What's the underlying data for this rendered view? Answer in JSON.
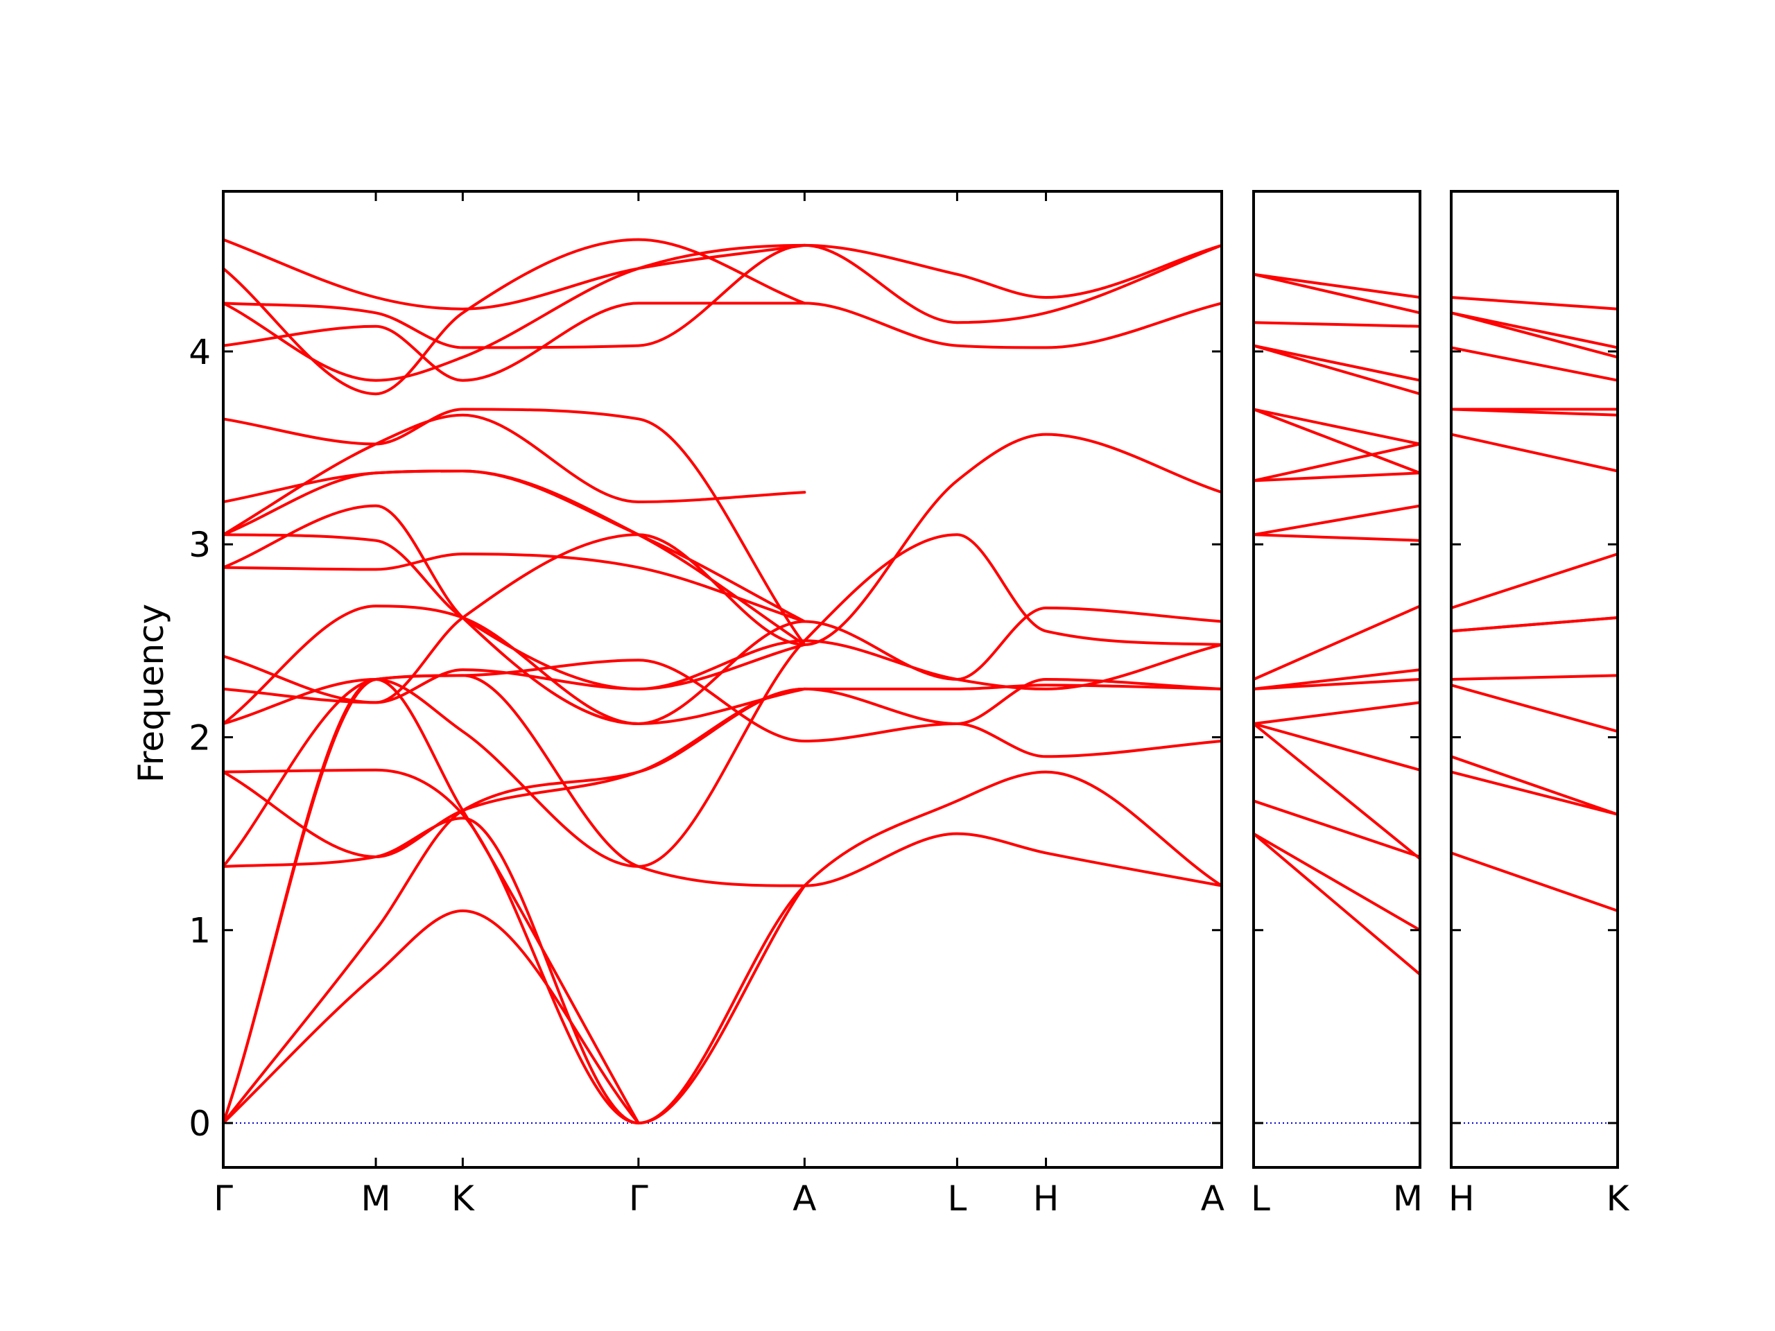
{
  "chart_data": {
    "type": "line",
    "title": "",
    "ylabel": "Frequency",
    "ylim": [
      -0.23,
      4.83
    ],
    "yticks": [
      0,
      1,
      2,
      3,
      4
    ],
    "line_color": "#ff0000",
    "zero_line_color": "#0000cc",
    "grid": false,
    "legend": "none",
    "panels": [
      {
        "xlim": [
          0,
          5.17
        ],
        "point_labels": [
          {
            "x": 0.0,
            "label": "Γ"
          },
          {
            "x": 0.79,
            "label": "M"
          },
          {
            "x": 1.24,
            "label": "K"
          },
          {
            "x": 2.15,
            "label": "Γ"
          },
          {
            "x": 3.01,
            "label": "A"
          },
          {
            "x": 3.8,
            "label": "L"
          },
          {
            "x": 4.26,
            "label": "H"
          },
          {
            "x": 5.17,
            "label": "A"
          }
        ],
        "bands": [
          [
            [
              0,
              0
            ],
            [
              0.79,
              0.77
            ],
            [
              1.24,
              1.1
            ],
            [
              2.15,
              0
            ]
          ],
          [
            [
              0,
              0
            ],
            [
              0.79,
              1.0
            ],
            [
              1.24,
              1.62
            ],
            [
              2.15,
              1.82
            ],
            [
              3.01,
              2.25
            ],
            [
              3.8,
              2.25
            ],
            [
              4.26,
              2.27
            ],
            [
              5.17,
              2.25
            ]
          ],
          [
            [
              0,
              0
            ],
            [
              0.79,
              2.3
            ],
            [
              1.24,
              1.62
            ],
            [
              2.15,
              0
            ]
          ],
          [
            [
              0,
              0
            ],
            [
              0.79,
              2.3
            ],
            [
              1.24,
              2.32
            ],
            [
              2.15,
              1.33
            ],
            [
              3.01,
              1.23
            ],
            [
              3.8,
              1.5
            ],
            [
              4.26,
              1.4
            ],
            [
              5.17,
              1.23
            ]
          ],
          [
            [
              0,
              1.33
            ],
            [
              0.79,
              1.38
            ],
            [
              1.24,
              1.58
            ],
            [
              2.15,
              0
            ],
            [
              3.01,
              1.23
            ],
            [
              3.8,
              1.67
            ],
            [
              4.26,
              1.82
            ],
            [
              5.17,
              1.23
            ]
          ],
          [
            [
              0,
              1.33
            ],
            [
              0.79,
              2.3
            ],
            [
              1.24,
              2.32
            ],
            [
              2.15,
              2.4
            ],
            [
              3.01,
              1.98
            ],
            [
              3.8,
              2.07
            ],
            [
              4.26,
              1.9
            ],
            [
              5.17,
              1.98
            ]
          ],
          [
            [
              0,
              1.82
            ],
            [
              0.79,
              1.83
            ],
            [
              1.24,
              1.6
            ],
            [
              2.15,
              0
            ],
            [
              3.01,
              1.23
            ]
          ],
          [
            [
              0,
              1.82
            ],
            [
              0.79,
              1.38
            ],
            [
              1.24,
              1.62
            ],
            [
              2.15,
              1.82
            ],
            [
              3.01,
              2.25
            ],
            [
              3.8,
              2.07
            ],
            [
              4.26,
              2.3
            ],
            [
              5.17,
              2.25
            ]
          ],
          [
            [
              0,
              2.07
            ],
            [
              0.79,
              2.3
            ],
            [
              1.24,
              2.03
            ],
            [
              2.15,
              1.33
            ],
            [
              3.01,
              2.5
            ],
            [
              3.8,
              3.05
            ],
            [
              4.26,
              2.55
            ],
            [
              5.17,
              2.48
            ]
          ],
          [
            [
              0,
              2.07
            ],
            [
              0.79,
              2.68
            ],
            [
              1.24,
              2.62
            ],
            [
              2.15,
              2.07
            ],
            [
              3.01,
              2.6
            ],
            [
              3.8,
              2.3
            ],
            [
              4.26,
              2.67
            ],
            [
              5.17,
              2.6
            ]
          ],
          [
            [
              0,
              2.25
            ],
            [
              0.79,
              2.18
            ],
            [
              1.24,
              2.62
            ],
            [
              2.15,
              3.05
            ],
            [
              3.01,
              2.48
            ],
            [
              3.8,
              3.33
            ],
            [
              4.26,
              3.57
            ],
            [
              5.17,
              3.27
            ]
          ],
          [
            [
              0,
              2.42
            ],
            [
              0.79,
              2.18
            ],
            [
              1.24,
              2.35
            ],
            [
              2.15,
              2.25
            ],
            [
              3.01,
              2.5
            ],
            [
              3.8,
              2.3
            ],
            [
              4.26,
              2.25
            ],
            [
              5.17,
              2.48
            ]
          ],
          [
            [
              0,
              2.88
            ],
            [
              0.79,
              2.87
            ],
            [
              1.24,
              2.95
            ],
            [
              2.15,
              2.88
            ],
            [
              3.01,
              2.6
            ]
          ],
          [
            [
              0,
              2.88
            ],
            [
              0.79,
              3.2
            ],
            [
              1.24,
              2.62
            ],
            [
              2.15,
              2.07
            ],
            [
              3.01,
              2.25
            ]
          ],
          [
            [
              0,
              3.05
            ],
            [
              0.79,
              3.02
            ],
            [
              1.24,
              2.62
            ],
            [
              2.15,
              2.25
            ],
            [
              3.01,
              2.48
            ]
          ],
          [
            [
              0,
              3.05
            ],
            [
              0.79,
              3.37
            ],
            [
              1.24,
              3.38
            ],
            [
              2.15,
              3.05
            ],
            [
              3.01,
              2.48
            ]
          ],
          [
            [
              0,
              3.05
            ],
            [
              0.79,
              3.52
            ],
            [
              1.24,
              3.67
            ],
            [
              2.15,
              3.22
            ],
            [
              3.01,
              3.27
            ]
          ],
          [
            [
              0,
              3.22
            ],
            [
              0.79,
              3.37
            ],
            [
              1.24,
              3.38
            ],
            [
              2.15,
              3.05
            ],
            [
              3.01,
              2.6
            ]
          ],
          [
            [
              0,
              3.65
            ],
            [
              0.79,
              3.52
            ],
            [
              1.24,
              3.7
            ],
            [
              2.15,
              3.65
            ],
            [
              3.01,
              2.48
            ]
          ],
          [
            [
              0,
              4.03
            ],
            [
              0.79,
              4.13
            ],
            [
              1.24,
              3.85
            ],
            [
              2.15,
              4.25
            ],
            [
              3.01,
              4.25
            ],
            [
              3.8,
              4.03
            ],
            [
              4.26,
              4.02
            ],
            [
              5.17,
              4.25
            ]
          ],
          [
            [
              0,
              4.25
            ],
            [
              0.79,
              3.85
            ],
            [
              1.24,
              3.97
            ],
            [
              2.15,
              4.43
            ],
            [
              3.01,
              4.55
            ],
            [
              3.8,
              4.15
            ],
            [
              4.26,
              4.2
            ],
            [
              5.17,
              4.55
            ]
          ],
          [
            [
              0,
              4.25
            ],
            [
              0.79,
              4.2
            ],
            [
              1.24,
              4.02
            ],
            [
              2.15,
              4.03
            ],
            [
              3.01,
              4.55
            ],
            [
              3.8,
              4.4
            ],
            [
              4.26,
              4.28
            ],
            [
              5.17,
              4.55
            ]
          ],
          [
            [
              0,
              4.43
            ],
            [
              0.79,
              3.78
            ],
            [
              1.24,
              4.2
            ],
            [
              2.15,
              4.58
            ],
            [
              3.01,
              4.25
            ]
          ],
          [
            [
              0,
              4.58
            ],
            [
              0.79,
              4.28
            ],
            [
              1.24,
              4.22
            ],
            [
              2.15,
              4.43
            ],
            [
              3.01,
              4.55
            ]
          ]
        ]
      },
      {
        "xlim": [
          0,
          0.79
        ],
        "point_labels": [
          {
            "x": 0.0,
            "label": "L"
          },
          {
            "x": 0.79,
            "label": "M"
          }
        ],
        "bands": [
          [
            [
              0,
              1.5
            ],
            [
              0.79,
              0.77
            ]
          ],
          [
            [
              0,
              1.5
            ],
            [
              0.79,
              1.0
            ]
          ],
          [
            [
              0,
              1.67
            ],
            [
              0.79,
              1.38
            ]
          ],
          [
            [
              0,
              2.07
            ],
            [
              0.79,
              1.37
            ]
          ],
          [
            [
              0,
              2.07
            ],
            [
              0.79,
              1.83
            ]
          ],
          [
            [
              0,
              2.07
            ],
            [
              0.79,
              2.18
            ]
          ],
          [
            [
              0,
              2.25
            ],
            [
              0.79,
              2.3
            ]
          ],
          [
            [
              0,
              2.25
            ],
            [
              0.79,
              2.35
            ]
          ],
          [
            [
              0,
              2.3
            ],
            [
              0.79,
              2.68
            ]
          ],
          [
            [
              0,
              3.05
            ],
            [
              0.79,
              3.02
            ]
          ],
          [
            [
              0,
              3.05
            ],
            [
              0.79,
              3.2
            ]
          ],
          [
            [
              0,
              3.33
            ],
            [
              0.79,
              3.37
            ]
          ],
          [
            [
              0,
              3.33
            ],
            [
              0.79,
              3.52
            ]
          ],
          [
            [
              0,
              3.7
            ],
            [
              0.79,
              3.37
            ]
          ],
          [
            [
              0,
              3.7
            ],
            [
              0.79,
              3.52
            ]
          ],
          [
            [
              0,
              4.03
            ],
            [
              0.79,
              3.78
            ]
          ],
          [
            [
              0,
              4.03
            ],
            [
              0.79,
              3.85
            ]
          ],
          [
            [
              0,
              4.15
            ],
            [
              0.79,
              4.13
            ]
          ],
          [
            [
              0,
              4.4
            ],
            [
              0.79,
              4.2
            ]
          ],
          [
            [
              0,
              4.4
            ],
            [
              0.79,
              4.28
            ]
          ]
        ]
      },
      {
        "xlim": [
          0,
          0.79
        ],
        "point_labels": [
          {
            "x": 0.0,
            "label": "H"
          },
          {
            "x": 0.79,
            "label": "K"
          }
        ],
        "bands": [
          [
            [
              0,
              1.4
            ],
            [
              0.79,
              1.1
            ]
          ],
          [
            [
              0,
              1.82
            ],
            [
              0.79,
              1.6
            ]
          ],
          [
            [
              0,
              1.9
            ],
            [
              0.79,
              1.6
            ]
          ],
          [
            [
              0,
              2.27
            ],
            [
              0.79,
              2.03
            ]
          ],
          [
            [
              0,
              2.3
            ],
            [
              0.79,
              2.32
            ]
          ],
          [
            [
              0,
              2.55
            ],
            [
              0.79,
              2.62
            ]
          ],
          [
            [
              0,
              2.55
            ],
            [
              0.79,
              2.62
            ]
          ],
          [
            [
              0,
              2.67
            ],
            [
              0.79,
              2.95
            ]
          ],
          [
            [
              0,
              3.57
            ],
            [
              0.79,
              3.38
            ]
          ],
          [
            [
              0,
              3.7
            ],
            [
              0.79,
              3.67
            ]
          ],
          [
            [
              0,
              3.7
            ],
            [
              0.79,
              3.7
            ]
          ],
          [
            [
              0,
              4.02
            ],
            [
              0.79,
              3.85
            ]
          ],
          [
            [
              0,
              4.2
            ],
            [
              0.79,
              3.97
            ]
          ],
          [
            [
              0,
              4.2
            ],
            [
              0.79,
              4.02
            ]
          ],
          [
            [
              0,
              4.28
            ],
            [
              0.79,
              4.22
            ]
          ]
        ]
      }
    ]
  }
}
